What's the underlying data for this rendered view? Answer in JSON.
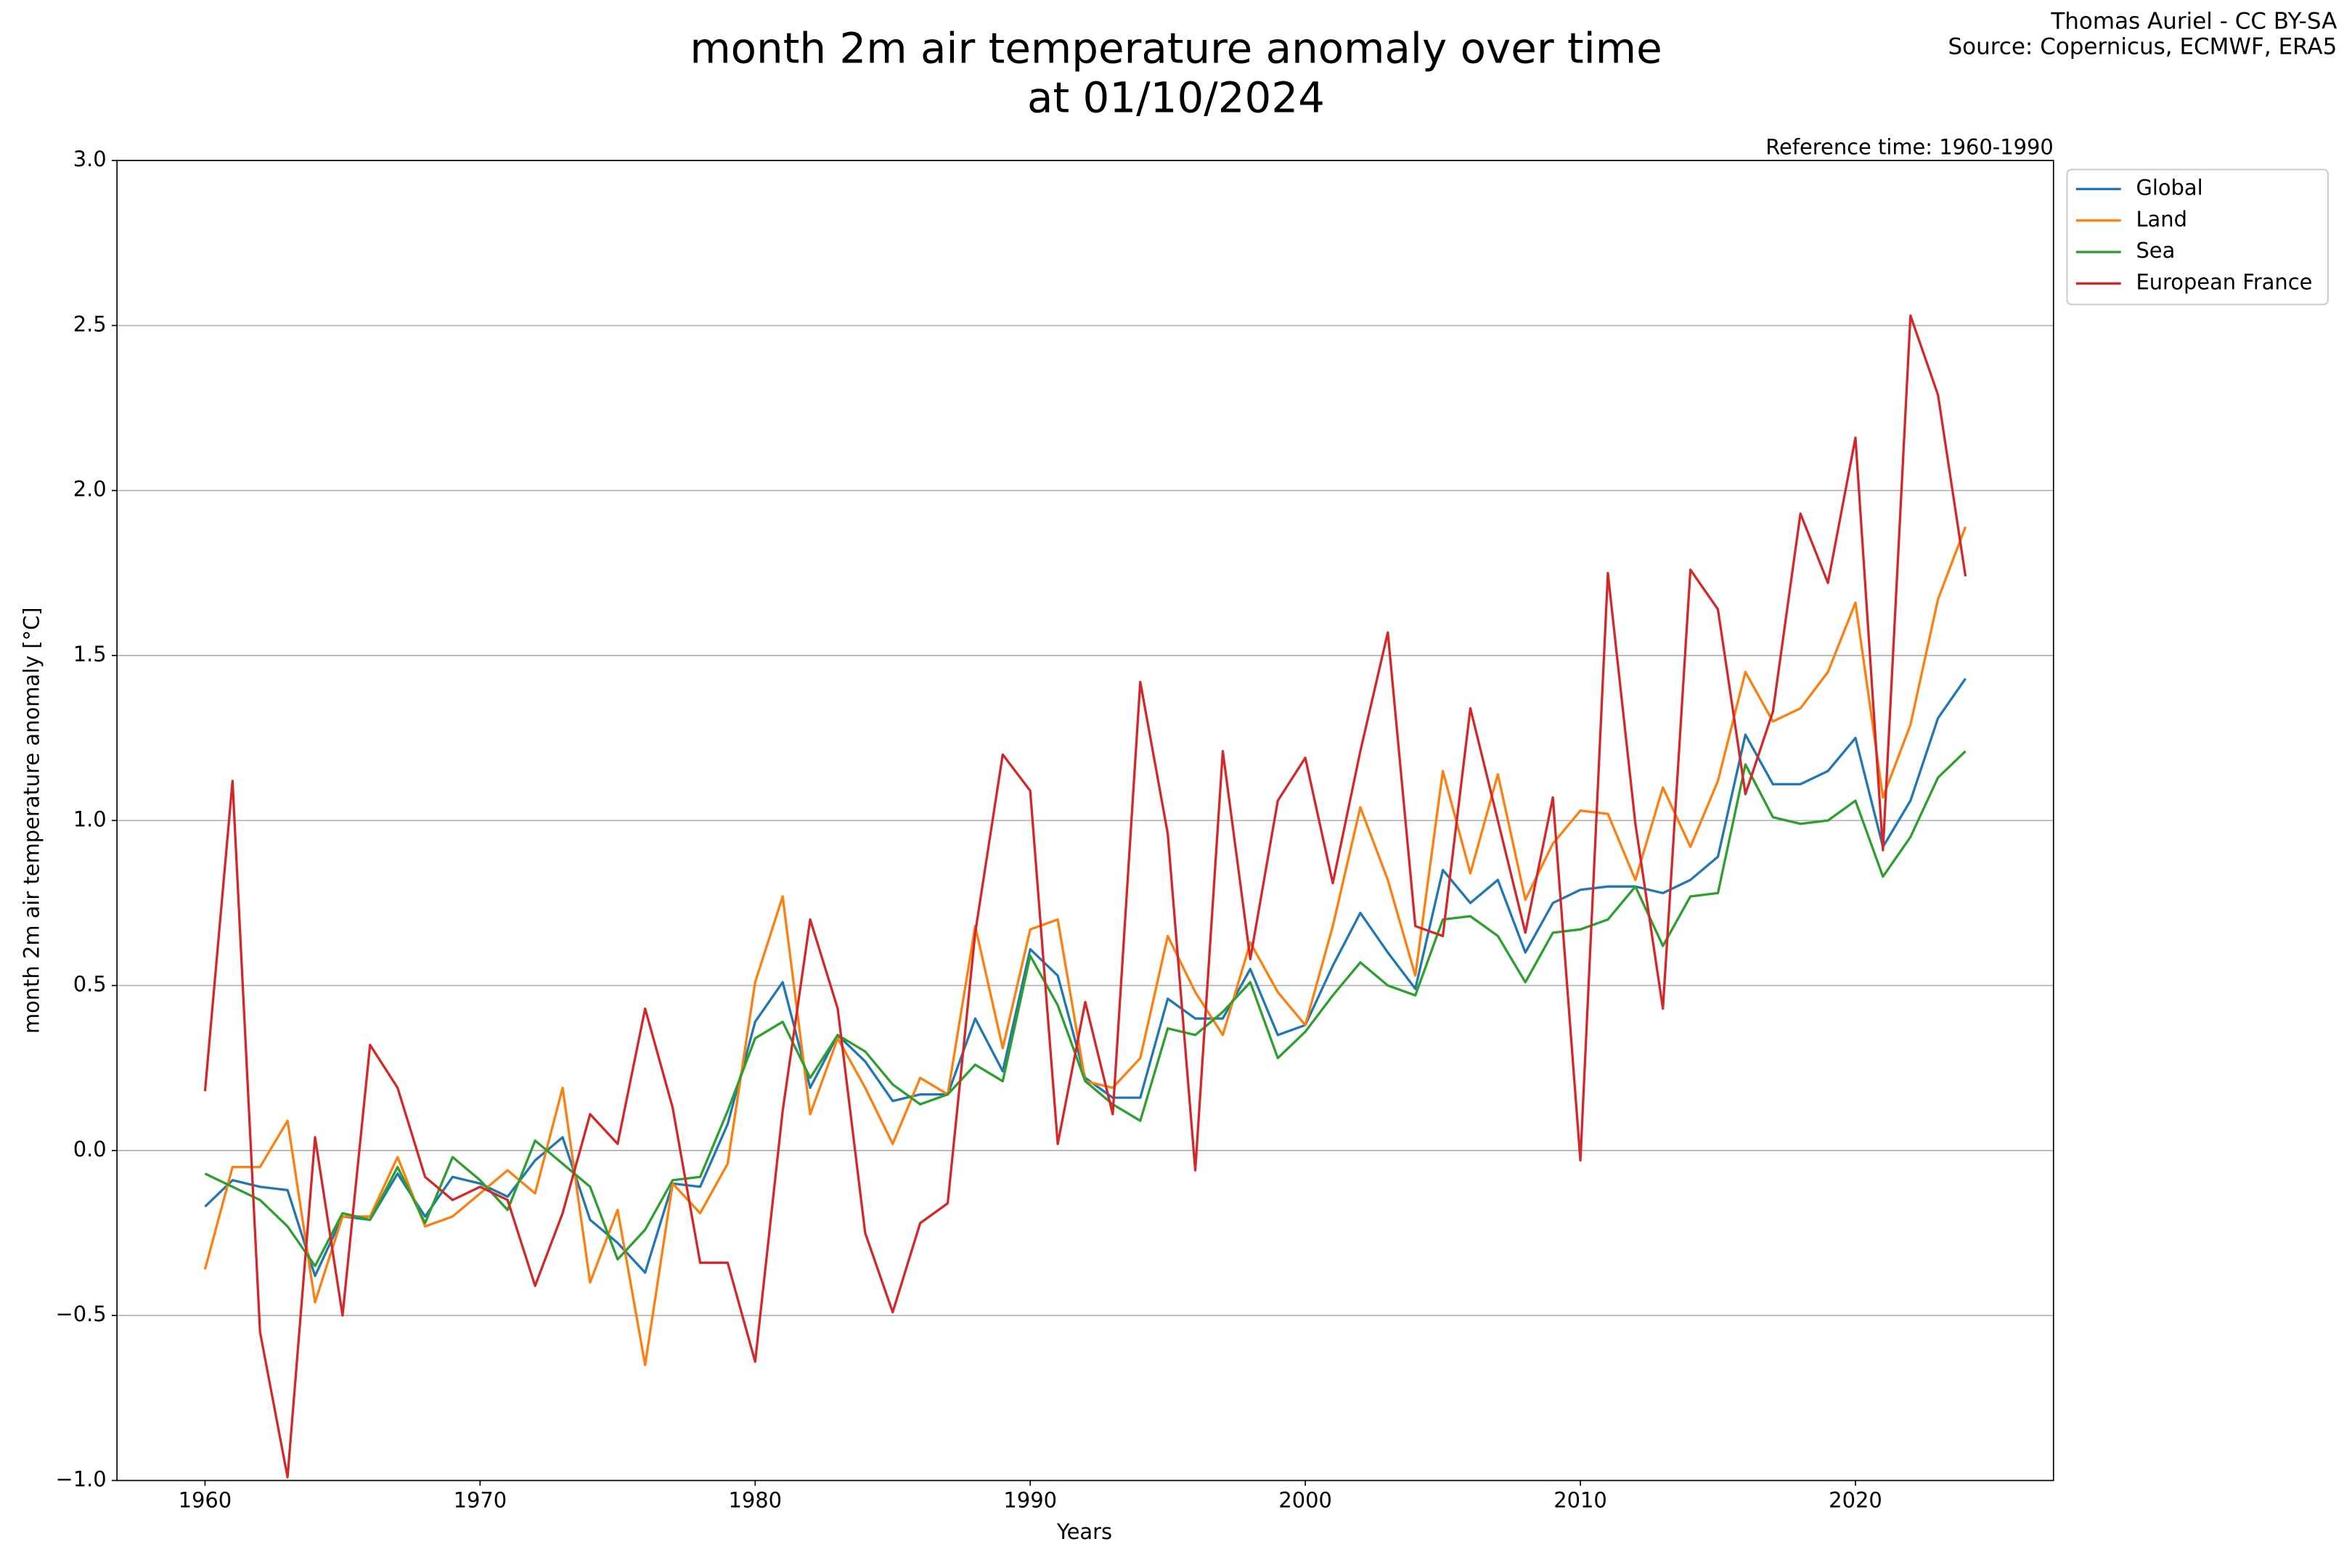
{
  "chart_data": {
    "type": "line",
    "title": [
      "month 2m air temperature anomaly over time",
      "at 01/10/2024"
    ],
    "credit": [
      "Thomas Auriel - CC BY-SA",
      "Source: Copernicus, ECMWF, ERA5"
    ],
    "annotation": "Reference time: 1960-1990",
    "xlabel": "Years",
    "ylabel": "month 2m air temperature anomaly [°C]",
    "x": [
      1960,
      1961,
      1962,
      1963,
      1964,
      1965,
      1966,
      1967,
      1968,
      1969,
      1970,
      1971,
      1972,
      1973,
      1974,
      1975,
      1976,
      1977,
      1978,
      1979,
      1980,
      1981,
      1982,
      1983,
      1984,
      1985,
      1986,
      1987,
      1988,
      1989,
      1990,
      1991,
      1992,
      1993,
      1994,
      1995,
      1996,
      1997,
      1998,
      1999,
      2000,
      2001,
      2002,
      2003,
      2004,
      2005,
      2006,
      2007,
      2008,
      2009,
      2010,
      2011,
      2012,
      2013,
      2014,
      2015,
      2016,
      2017,
      2018,
      2019,
      2020,
      2021,
      2022,
      2023,
      2024
    ],
    "series": [
      {
        "name": "Global",
        "color": "#1f77b4",
        "values": [
          -0.17,
          -0.09,
          -0.11,
          -0.12,
          -0.38,
          -0.2,
          -0.21,
          -0.07,
          -0.2,
          -0.08,
          -0.1,
          -0.14,
          -0.03,
          0.04,
          -0.21,
          -0.28,
          -0.37,
          -0.1,
          -0.11,
          0.08,
          0.39,
          0.51,
          0.19,
          0.35,
          0.27,
          0.15,
          0.17,
          0.17,
          0.4,
          0.24,
          0.61,
          0.53,
          0.22,
          0.16,
          0.16,
          0.46,
          0.4,
          0.4,
          0.55,
          0.35,
          0.38,
          0.56,
          0.72,
          0.6,
          0.49,
          0.85,
          0.75,
          0.82,
          0.6,
          0.75,
          0.79,
          0.8,
          0.8,
          0.78,
          0.82,
          0.89,
          1.26,
          1.11,
          1.11,
          1.15,
          1.25,
          0.92,
          1.06,
          1.31,
          1.43
        ]
      },
      {
        "name": "Land",
        "color": "#ff7f0e",
        "values": [
          -0.36,
          -0.05,
          -0.05,
          0.09,
          -0.46,
          -0.2,
          -0.2,
          -0.02,
          -0.23,
          -0.2,
          -0.13,
          -0.06,
          -0.13,
          0.19,
          -0.4,
          -0.18,
          -0.65,
          -0.1,
          -0.19,
          -0.04,
          0.51,
          0.77,
          0.11,
          0.34,
          0.19,
          0.02,
          0.22,
          0.17,
          0.68,
          0.31,
          0.67,
          0.7,
          0.21,
          0.19,
          0.28,
          0.65,
          0.48,
          0.35,
          0.63,
          0.48,
          0.38,
          0.68,
          1.04,
          0.82,
          0.53,
          1.15,
          0.84,
          1.14,
          0.76,
          0.93,
          1.03,
          1.02,
          0.82,
          1.1,
          0.92,
          1.12,
          1.45,
          1.3,
          1.34,
          1.45,
          1.66,
          1.07,
          1.29,
          1.67,
          1.89
        ]
      },
      {
        "name": "Sea",
        "color": "#2ca02c",
        "values": [
          -0.07,
          -0.11,
          -0.15,
          -0.23,
          -0.35,
          -0.19,
          -0.21,
          -0.05,
          -0.22,
          -0.02,
          -0.09,
          -0.18,
          0.03,
          -0.04,
          -0.11,
          -0.33,
          -0.24,
          -0.09,
          -0.08,
          0.12,
          0.34,
          0.39,
          0.22,
          0.35,
          0.3,
          0.2,
          0.14,
          0.17,
          0.26,
          0.21,
          0.59,
          0.44,
          0.21,
          0.14,
          0.09,
          0.37,
          0.35,
          0.42,
          0.51,
          0.28,
          0.36,
          0.47,
          0.57,
          0.5,
          0.47,
          0.7,
          0.71,
          0.65,
          0.51,
          0.66,
          0.67,
          0.7,
          0.8,
          0.62,
          0.77,
          0.78,
          1.17,
          1.01,
          0.99,
          1.0,
          1.06,
          0.83,
          0.95,
          1.13,
          1.21
        ]
      },
      {
        "name": "European France",
        "color": "#d62728",
        "values": [
          0.18,
          1.12,
          -0.55,
          -0.99,
          0.04,
          -0.5,
          0.32,
          0.19,
          -0.08,
          -0.15,
          -0.11,
          -0.15,
          -0.41,
          -0.19,
          0.11,
          0.02,
          0.43,
          0.13,
          -0.34,
          -0.34,
          -0.64,
          0.12,
          0.7,
          0.43,
          -0.25,
          -0.49,
          -0.22,
          -0.16,
          0.66,
          1.2,
          1.09,
          0.02,
          0.45,
          0.11,
          1.42,
          0.96,
          -0.06,
          1.21,
          0.58,
          1.06,
          1.19,
          0.81,
          1.21,
          1.57,
          0.68,
          0.65,
          1.34,
          1.0,
          0.66,
          1.07,
          -0.03,
          1.75,
          0.99,
          0.43,
          1.76,
          1.64,
          1.08,
          1.33,
          1.93,
          1.72,
          2.16,
          0.91,
          2.53,
          2.29,
          1.74
        ]
      }
    ],
    "xlim": [
      1956.8,
      2027.2
    ],
    "xticks": [
      1960,
      1970,
      1980,
      1990,
      2000,
      2010,
      2020
    ],
    "ylim": [
      -1.0,
      3.0
    ],
    "yticks": [
      {
        "value": -1.0,
        "label": "−1.0"
      },
      {
        "value": -0.5,
        "label": "−0.5"
      },
      {
        "value": 0.0,
        "label": "0.0"
      },
      0.5,
      {
        "value": 1.0,
        "label": "1.0"
      },
      1.5,
      {
        "value": 2.0,
        "label": "2.0"
      },
      2.5,
      {
        "value": 3.0,
        "label": "3.0"
      }
    ],
    "grid": "y",
    "legend": "outside right"
  }
}
